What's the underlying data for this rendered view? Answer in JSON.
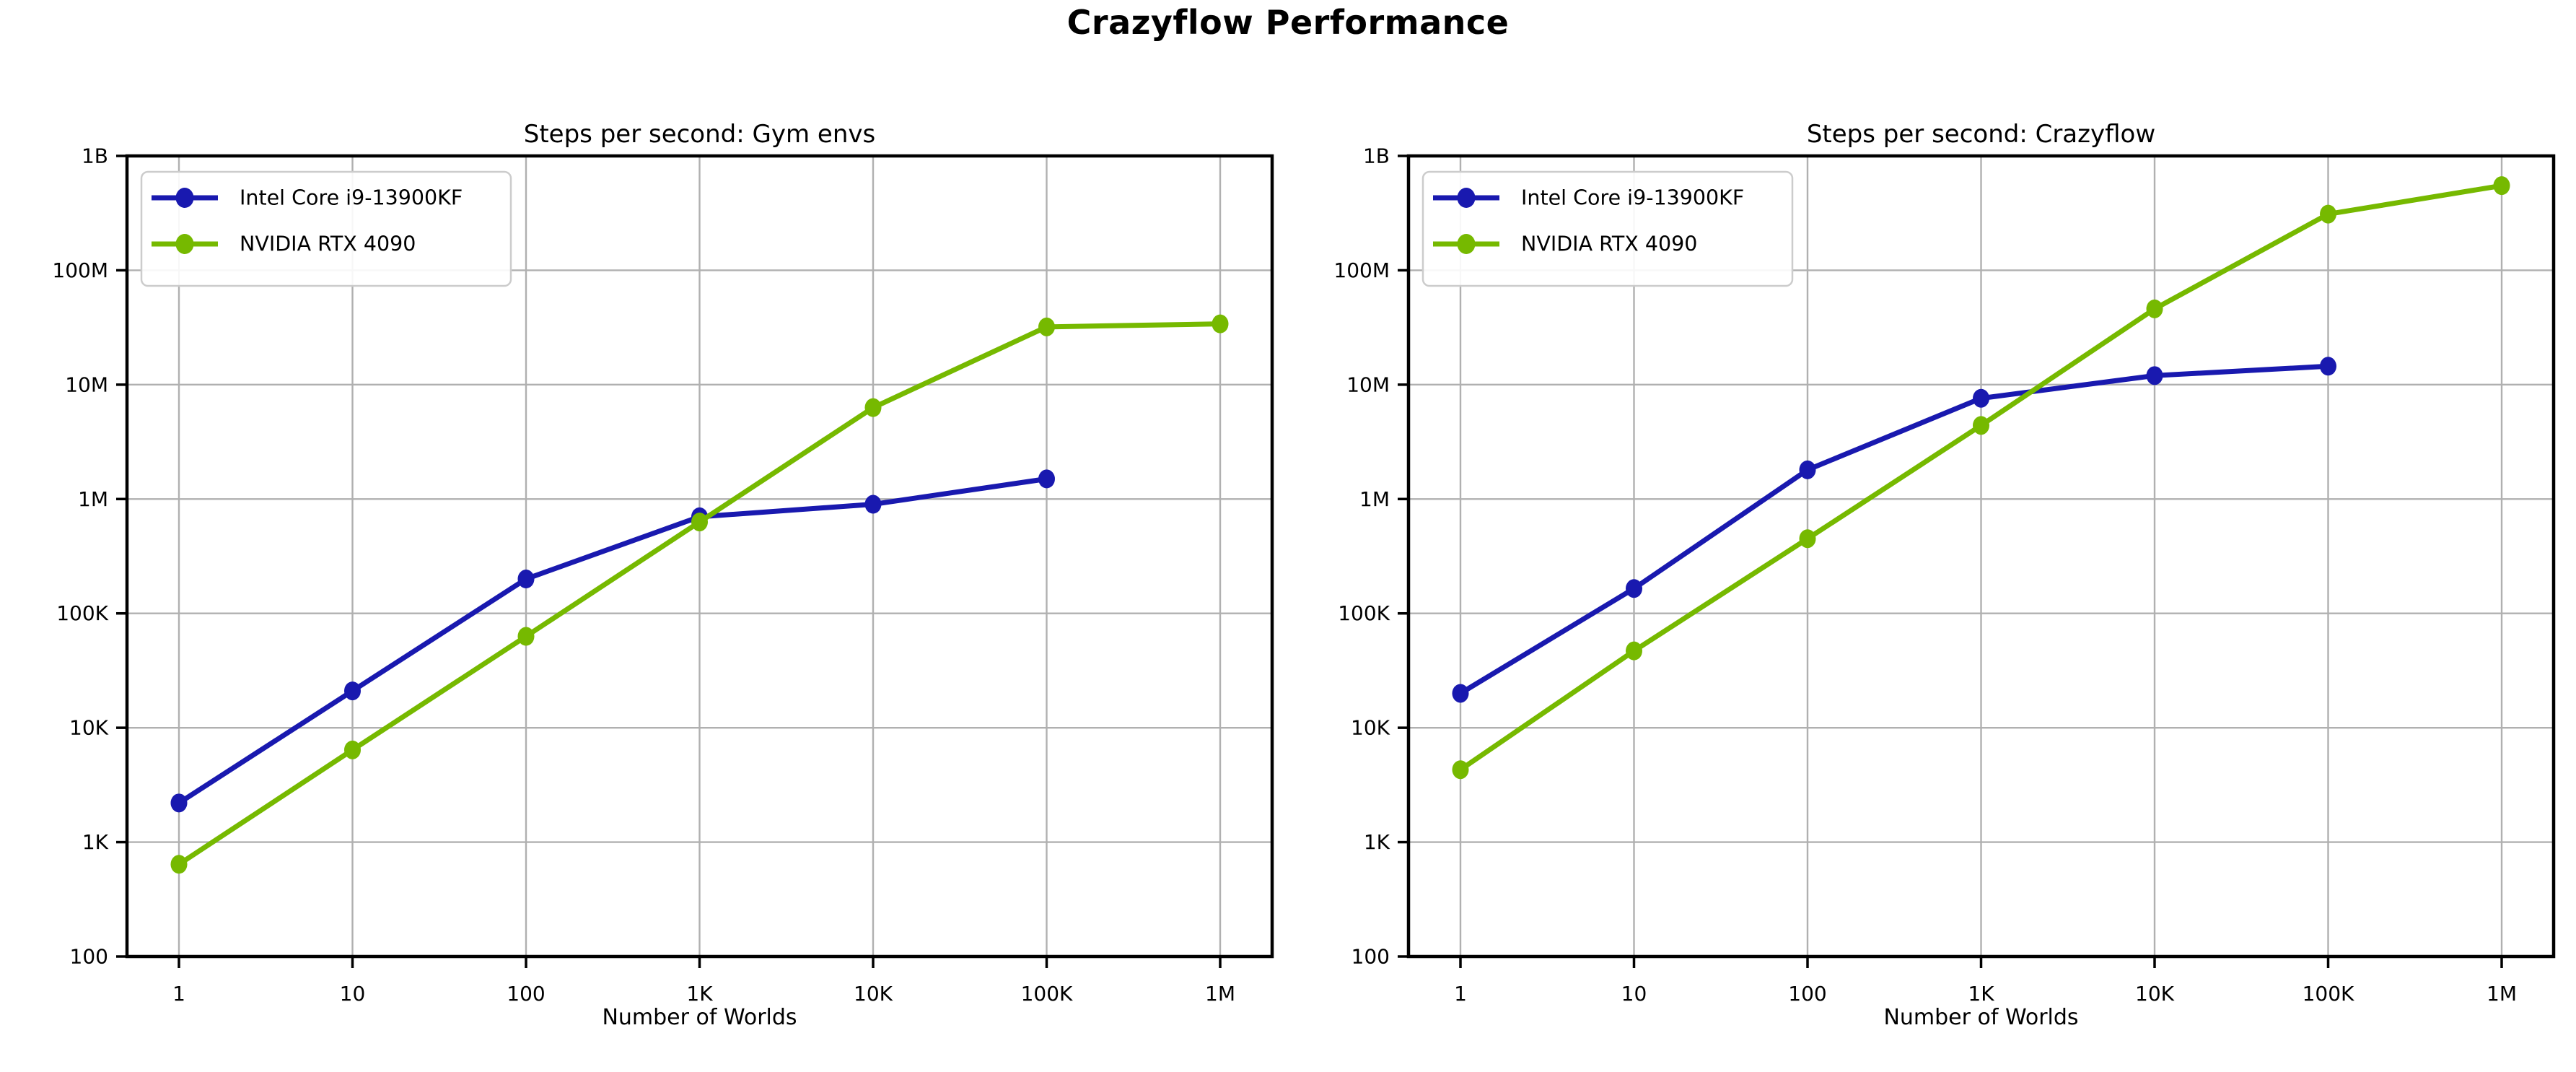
{
  "title": "Crazyflow Performance",
  "colors": {
    "intel_blue": "#1919af",
    "nvidia_green": "#76b900",
    "grid_gray": "#b0b0b0",
    "axis_black": "#000000",
    "legend_border": "#cccccc"
  },
  "chart_data": [
    {
      "type": "line",
      "title": "Steps per second: Gym envs",
      "xlabel": "Number of Worlds",
      "ylabel": "",
      "xscale": "log",
      "yscale": "log",
      "grid": true,
      "legend_position": "upper left",
      "x_tick_labels": [
        "1",
        "10",
        "100",
        "1K",
        "10K",
        "100K",
        "1M"
      ],
      "y_tick_labels": [
        "100",
        "1K",
        "10K",
        "100K",
        "1M",
        "10M",
        "100M",
        "1B"
      ],
      "xlim": [
        1,
        1000000
      ],
      "ylim": [
        100,
        1000000000
      ],
      "series": [
        {
          "name": "Intel Core i9-13900KF",
          "color": "#1919af",
          "x": [
            1,
            10,
            100,
            1000,
            10000,
            100000
          ],
          "values": [
            2200,
            21000,
            200000,
            700000,
            900000,
            1500000
          ]
        },
        {
          "name": "NVIDIA RTX 4090",
          "color": "#76b900",
          "x": [
            1,
            10,
            100,
            1000,
            10000,
            100000,
            1000000
          ],
          "values": [
            640,
            6400,
            63000,
            630000,
            6300000,
            32000000,
            34000000
          ]
        }
      ]
    },
    {
      "type": "line",
      "title": "Steps per second: Crazyflow",
      "xlabel": "Number of Worlds",
      "ylabel": "",
      "xscale": "log",
      "yscale": "log",
      "grid": true,
      "legend_position": "upper left",
      "x_tick_labels": [
        "1",
        "10",
        "100",
        "1K",
        "10K",
        "100K",
        "1M"
      ],
      "y_tick_labels": [
        "100",
        "1K",
        "10K",
        "100K",
        "1M",
        "10M",
        "100M",
        "1B"
      ],
      "xlim": [
        1,
        1000000
      ],
      "ylim": [
        100,
        1000000000
      ],
      "series": [
        {
          "name": "Intel Core i9-13900KF",
          "color": "#1919af",
          "x": [
            1,
            10,
            100,
            1000,
            10000,
            100000
          ],
          "values": [
            20000,
            165000,
            1800000,
            7600000,
            12000000,
            14500000
          ]
        },
        {
          "name": "NVIDIA RTX 4090",
          "color": "#76b900",
          "x": [
            1,
            10,
            100,
            1000,
            10000,
            100000,
            1000000
          ],
          "values": [
            4300,
            47000,
            450000,
            4400000,
            46000000,
            310000000,
            550000000
          ]
        }
      ]
    }
  ]
}
